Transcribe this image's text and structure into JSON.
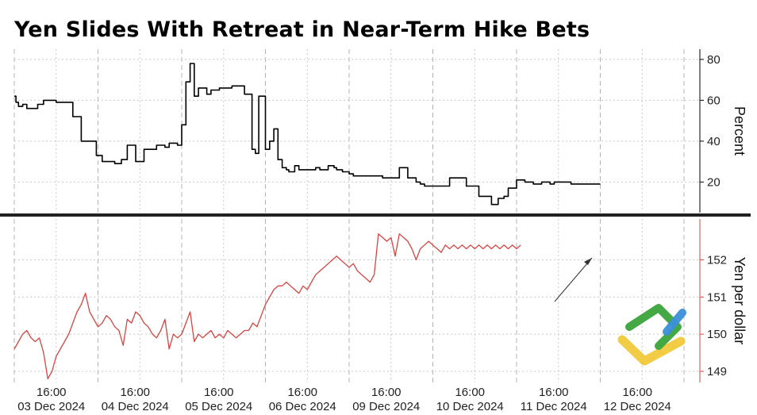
{
  "title": "Yen Slides With Retreat in Near-Term Hike Bets",
  "chart_data": [
    {
      "type": "line",
      "panel": "top",
      "ylabel": "Percent",
      "ylim": [
        5,
        85
      ],
      "yticks": [
        20,
        40,
        60,
        80
      ],
      "axis_side": "right",
      "grid": true,
      "series": [
        {
          "color": "#000000",
          "step": true,
          "x": [
            0.0,
            0.02,
            0.05,
            0.1,
            0.15,
            0.28,
            0.35,
            0.5,
            0.7,
            0.8,
            0.98,
            1.05,
            1.1,
            1.2,
            1.28,
            1.35,
            1.45,
            1.55,
            1.7,
            1.8,
            1.85,
            1.95,
            2.0,
            2.05,
            2.1,
            2.15,
            2.2,
            2.3,
            2.35,
            2.45,
            2.6,
            2.75,
            2.84,
            2.88,
            2.92,
            2.95,
            3.0,
            3.05,
            3.1,
            3.15,
            3.2,
            3.25,
            3.28,
            3.35,
            3.4,
            3.5,
            3.6,
            3.65,
            3.75,
            3.82,
            3.85,
            3.92,
            3.95,
            4.0,
            4.05,
            4.1,
            4.15,
            4.2,
            4.4,
            4.5,
            4.6,
            4.7,
            4.8,
            4.85,
            4.9,
            5.0,
            5.2,
            5.4,
            5.55,
            5.7,
            5.78,
            5.85,
            5.9,
            6.0,
            6.1,
            6.2,
            6.3,
            6.4,
            6.45,
            6.5,
            6.65,
            6.7,
            6.8,
            6.9,
            7.0
          ],
          "values": [
            62,
            59,
            57,
            58,
            56,
            58,
            60,
            59,
            52,
            40,
            33,
            30,
            30,
            29,
            31,
            38,
            30,
            36,
            38,
            37,
            39,
            38,
            48,
            69,
            78,
            62,
            66,
            63,
            65,
            66,
            67,
            63,
            36,
            34,
            62,
            62,
            36,
            40,
            46,
            31,
            27,
            26,
            25,
            28,
            26,
            26,
            27,
            26,
            28,
            27,
            26,
            25,
            25,
            24,
            23,
            23,
            23,
            23,
            22,
            22,
            27,
            22,
            20,
            19,
            18,
            18,
            22,
            18,
            13,
            9,
            12,
            13,
            17,
            21,
            20,
            19,
            20,
            19,
            20,
            20,
            19,
            19,
            19,
            19,
            19
          ]
        }
      ]
    },
    {
      "type": "line",
      "panel": "bottom",
      "ylabel": "Yen per dollar",
      "ylim": [
        148.7,
        153.1
      ],
      "yticks": [
        149,
        150,
        151,
        152
      ],
      "axis_side": "right",
      "grid": true,
      "categories": [
        "03 Dec 2024",
        "04 Dec 2024",
        "05 Dec 2024",
        "06 Dec 2024",
        "09 Dec 2024",
        "10 Dec 2024",
        "11 Dec 2024",
        "12 Dec 2024"
      ],
      "time_labels": [
        "16:00",
        "16:00",
        "16:00",
        "16:00",
        "16:00",
        "16:00",
        "16:00",
        "16:00"
      ],
      "annotation": "arrow",
      "series": [
        {
          "color": "#d64541",
          "x": [
            0.0,
            0.05,
            0.1,
            0.15,
            0.2,
            0.25,
            0.3,
            0.35,
            0.4,
            0.45,
            0.5,
            0.55,
            0.6,
            0.65,
            0.7,
            0.75,
            0.8,
            0.85,
            0.9,
            0.95,
            1.0,
            1.05,
            1.1,
            1.15,
            1.2,
            1.25,
            1.3,
            1.35,
            1.4,
            1.45,
            1.5,
            1.55,
            1.6,
            1.65,
            1.7,
            1.75,
            1.8,
            1.85,
            1.9,
            1.95,
            2.0,
            2.05,
            2.1,
            2.15,
            2.2,
            2.25,
            2.3,
            2.35,
            2.4,
            2.45,
            2.5,
            2.55,
            2.6,
            2.65,
            2.7,
            2.75,
            2.8,
            2.85,
            2.9,
            2.95,
            3.0,
            3.05,
            3.1,
            3.15,
            3.2,
            3.25,
            3.3,
            3.35,
            3.4,
            3.45,
            3.5,
            3.55,
            3.6,
            3.65,
            3.7,
            3.75,
            3.8,
            3.85,
            3.9,
            3.95,
            4.0,
            4.05,
            4.1,
            4.15,
            4.2,
            4.25,
            4.3,
            4.35,
            4.4,
            4.45,
            4.5,
            4.55,
            4.6,
            4.65,
            4.7,
            4.75,
            4.8,
            4.85,
            4.9,
            4.95,
            5.0,
            5.05,
            5.1,
            5.15,
            5.2,
            5.25,
            5.3,
            5.35,
            5.4,
            5.45,
            5.5,
            5.55,
            5.6,
            5.65,
            5.7,
            5.75,
            5.8,
            5.85,
            5.9,
            5.95,
            6.0,
            6.05
          ],
          "values": [
            149.6,
            149.8,
            150.0,
            150.1,
            149.9,
            149.8,
            149.9,
            149.5,
            148.8,
            149.0,
            149.4,
            149.6,
            149.8,
            150.0,
            150.3,
            150.6,
            150.8,
            151.1,
            150.6,
            150.4,
            150.2,
            150.3,
            150.5,
            150.4,
            150.2,
            150.1,
            149.7,
            150.4,
            150.3,
            150.6,
            150.5,
            150.3,
            150.2,
            150.0,
            149.9,
            150.1,
            150.4,
            149.6,
            150.0,
            149.9,
            150.0,
            150.3,
            150.6,
            149.8,
            150.0,
            149.9,
            150.0,
            150.1,
            149.9,
            150.0,
            149.9,
            150.1,
            150.0,
            149.9,
            150.0,
            150.1,
            150.1,
            150.3,
            150.2,
            150.5,
            150.8,
            151.0,
            151.2,
            151.3,
            151.3,
            151.4,
            151.3,
            151.2,
            151.1,
            151.3,
            151.2,
            151.4,
            151.6,
            151.7,
            151.8,
            151.9,
            152.0,
            152.1,
            152.0,
            151.9,
            151.8,
            151.9,
            151.7,
            151.6,
            151.5,
            151.4,
            151.6,
            152.7,
            152.6,
            152.5,
            152.6,
            152.1,
            152.7,
            152.6,
            152.5,
            152.3,
            152.0,
            152.3,
            152.4,
            152.5,
            152.4,
            152.3,
            152.2,
            152.4,
            152.3,
            152.4,
            152.3,
            152.4,
            152.3,
            152.4,
            152.3,
            152.4,
            152.3,
            152.4,
            152.3,
            152.4,
            152.3,
            152.4,
            152.3,
            152.4,
            152.3,
            152.4
          ]
        }
      ]
    }
  ]
}
